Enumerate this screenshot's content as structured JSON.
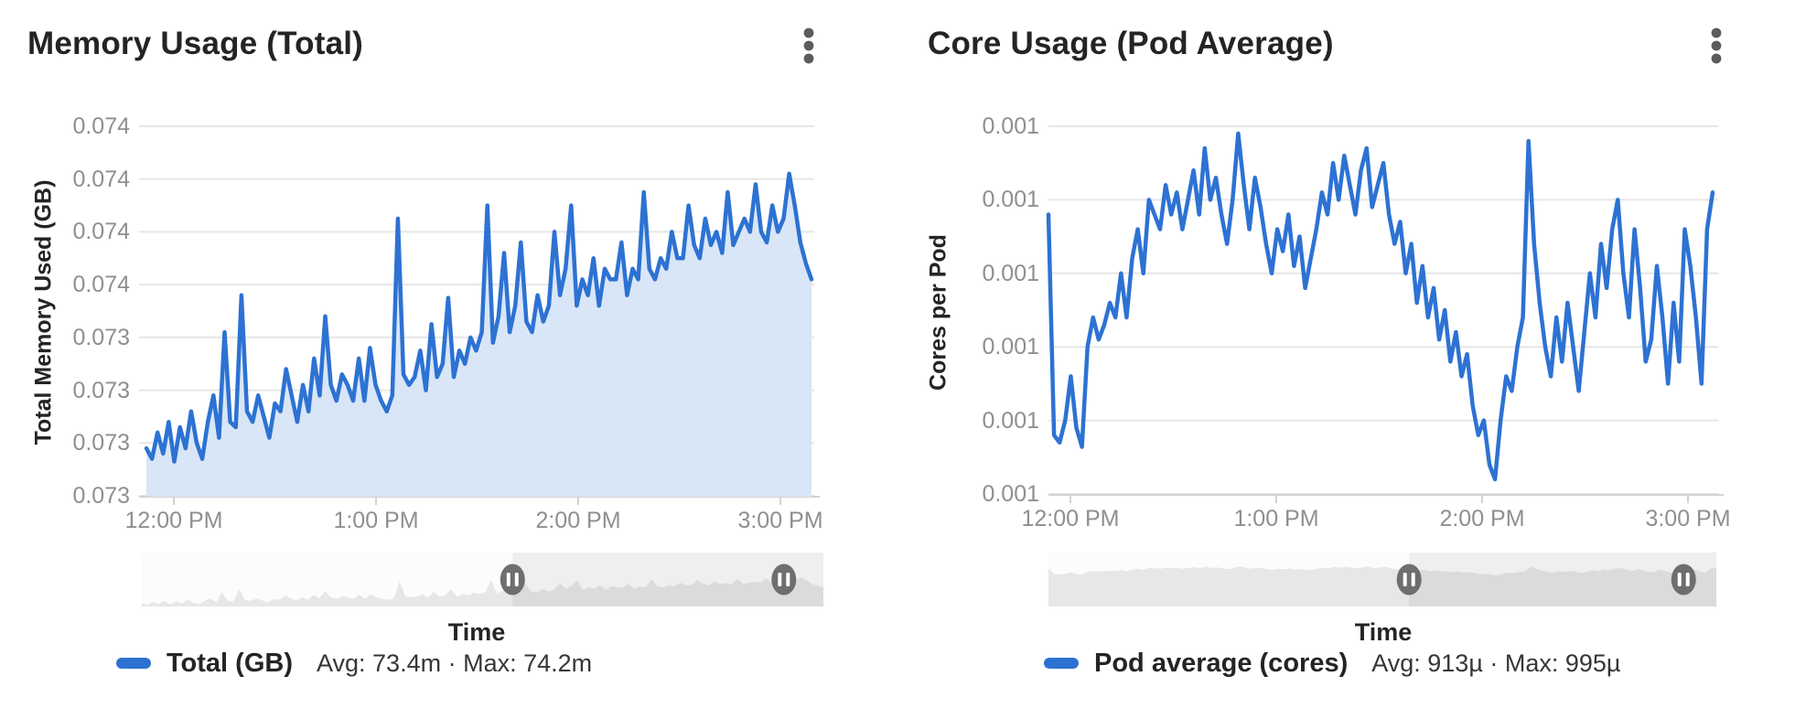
{
  "colors": {
    "line_blue": "#2d72d3",
    "area_fill": "#d9e6f7",
    "grid": "#e6e6e6",
    "axis_line": "#d2d2d2",
    "tick_text": "#8f8f8f",
    "title_text": "#242424",
    "mini_fill": "#e7e7e7",
    "slider_overlay": "rgba(0,0,0,0.05)",
    "handle": "#6e6e6e"
  },
  "charts": [
    {
      "title": "Memory Usage (Total)",
      "menu_icon": "kebab-menu-icon",
      "y_axis_title": "Total Memory Used (GB)",
      "x_axis_title": "Time",
      "y_tick_labels": [
        "0.074",
        "0.074",
        "0.074",
        "0.074",
        "0.073",
        "0.073",
        "0.073",
        "0.073"
      ],
      "x_tick_labels": [
        "12:00 PM",
        "1:00 PM",
        "2:00 PM",
        "3:00 PM"
      ],
      "legend_label": "Total (GB)",
      "legend_stats": "Avg: 73.4m · Max: 74.2m",
      "time_slider": {
        "handle1_frac": 0.544,
        "handle2_frac": 0.942
      }
    },
    {
      "title": "Core Usage (Pod Average)",
      "menu_icon": "kebab-menu-icon",
      "y_axis_title": "Cores per Pod",
      "x_axis_title": "Time",
      "y_tick_labels": [
        "0.001",
        "0.001",
        "0.001",
        "0.001",
        "0.001",
        "0.001"
      ],
      "x_tick_labels": [
        "12:00 PM",
        "1:00 PM",
        "2:00 PM",
        "3:00 PM"
      ],
      "legend_label": "Pod average (cores)",
      "legend_stats": "Avg: 913µ · Max: 995µ",
      "time_slider": {
        "handle1_frac": 0.54,
        "handle2_frac": 0.951
      }
    }
  ],
  "chart_data": [
    {
      "type": "line",
      "title": "Memory Usage (Total)",
      "xlabel": "Time",
      "ylabel": "Total Memory Used (GB)",
      "x_range": [
        "11:52 AM",
        "3:09 PM"
      ],
      "x_ticks": [
        "12:00 PM",
        "1:00 PM",
        "2:00 PM",
        "3:00 PM"
      ],
      "y_tick_values": [
        0.0744,
        0.0742,
        0.074,
        0.0738,
        0.0736,
        0.0734,
        0.0732,
        0.073
      ],
      "ylim": [
        0.073,
        0.0744
      ],
      "grid": true,
      "area_fill": true,
      "legend_position": "bottom",
      "series": [
        {
          "name": "Total (GB)",
          "unit": "GB",
          "values_unit": "milli-GB",
          "avg": "73.4m",
          "max": "74.2m",
          "values": [
            73.18,
            73.14,
            73.24,
            73.16,
            73.28,
            73.13,
            73.26,
            73.18,
            73.32,
            73.2,
            73.14,
            73.28,
            73.38,
            73.22,
            73.62,
            73.28,
            73.26,
            73.76,
            73.32,
            73.28,
            73.38,
            73.3,
            73.22,
            73.35,
            73.32,
            73.48,
            73.38,
            73.28,
            73.42,
            73.32,
            73.52,
            73.38,
            73.68,
            73.42,
            73.36,
            73.46,
            73.42,
            73.36,
            73.52,
            73.36,
            73.56,
            73.42,
            73.36,
            73.32,
            73.38,
            74.05,
            73.46,
            73.42,
            73.45,
            73.55,
            73.4,
            73.65,
            73.45,
            73.5,
            73.75,
            73.45,
            73.55,
            73.5,
            73.6,
            73.55,
            73.62,
            74.1,
            73.58,
            73.68,
            73.92,
            73.62,
            73.72,
            73.96,
            73.66,
            73.62,
            73.76,
            73.66,
            73.72,
            74.0,
            73.76,
            73.86,
            74.1,
            73.72,
            73.82,
            73.76,
            73.9,
            73.72,
            73.86,
            73.82,
            73.82,
            73.96,
            73.76,
            73.86,
            73.82,
            74.15,
            73.86,
            73.82,
            73.9,
            73.86,
            74.0,
            73.9,
            73.9,
            74.1,
            73.95,
            73.9,
            74.05,
            73.95,
            74.0,
            73.92,
            74.15,
            73.95,
            74.0,
            74.05,
            74.0,
            74.18,
            74.0,
            73.96,
            74.1,
            74.0,
            74.05,
            74.22,
            74.1,
            73.96,
            73.88,
            73.82
          ]
        }
      ]
    },
    {
      "type": "line",
      "title": "Core Usage (Pod Average)",
      "xlabel": "Time",
      "ylabel": "Cores per Pod",
      "x_range": [
        "11:52 AM",
        "3:09 PM"
      ],
      "x_ticks": [
        "12:00 PM",
        "1:00 PM",
        "2:00 PM",
        "3:00 PM"
      ],
      "y_tick_values": [
        0.001,
        0.00095,
        0.0009,
        0.00085,
        0.0008,
        0.00075
      ],
      "ylim": [
        0.00075,
        0.001
      ],
      "grid": true,
      "area_fill": false,
      "legend_position": "bottom",
      "series": [
        {
          "name": "Pod average (cores)",
          "unit": "cores",
          "values_unit": "micro-cores",
          "avg": "913µ",
          "max": "995µ",
          "values": [
            940,
            790,
            785,
            800,
            830,
            795,
            782,
            850,
            870,
            855,
            865,
            880,
            870,
            900,
            870,
            910,
            930,
            900,
            950,
            940,
            930,
            960,
            940,
            955,
            930,
            950,
            970,
            940,
            985,
            950,
            965,
            940,
            920,
            950,
            995,
            960,
            930,
            965,
            945,
            920,
            900,
            930,
            915,
            940,
            905,
            925,
            890,
            910,
            930,
            955,
            940,
            975,
            950,
            980,
            960,
            940,
            970,
            985,
            945,
            960,
            975,
            940,
            920,
            935,
            900,
            920,
            880,
            905,
            870,
            890,
            855,
            875,
            840,
            860,
            830,
            845,
            810,
            790,
            800,
            770,
            760,
            800,
            830,
            820,
            850,
            870,
            990,
            920,
            880,
            850,
            830,
            870,
            840,
            880,
            850,
            820,
            860,
            900,
            870,
            920,
            890,
            930,
            950,
            900,
            870,
            930,
            890,
            840,
            855,
            905,
            870,
            825,
            880,
            840,
            930,
            905,
            870,
            825,
            930,
            955
          ]
        }
      ]
    }
  ]
}
